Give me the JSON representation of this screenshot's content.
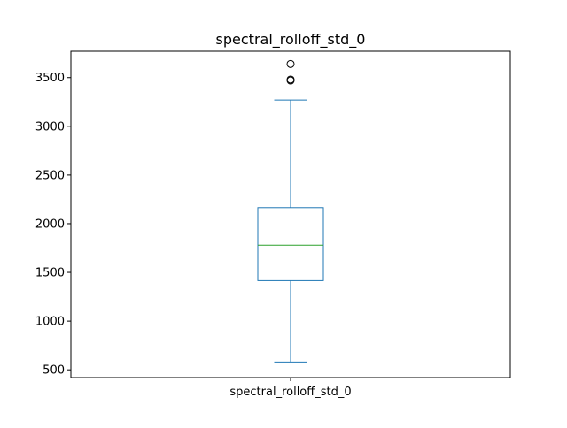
{
  "chart_data": {
    "type": "box",
    "title": "spectral_rolloff_std_0",
    "categories": [
      "spectral_rolloff_std_0"
    ],
    "boxes": [
      {
        "label": "spectral_rolloff_std_0",
        "whisker_low": 580,
        "q1": 1415,
        "median": 1780,
        "q3": 2165,
        "whisker_high": 3270,
        "outliers": [
          3470,
          3480,
          3640
        ]
      }
    ],
    "y_ticks": [
      500,
      1000,
      1500,
      2000,
      2500,
      3000,
      3500
    ],
    "ylim": [
      420,
      3770
    ],
    "xlabel": "",
    "ylabel": "",
    "grid": false,
    "colors": {
      "box": "#1f77b4",
      "median": "#2ca02c",
      "axes": "#000000"
    }
  }
}
